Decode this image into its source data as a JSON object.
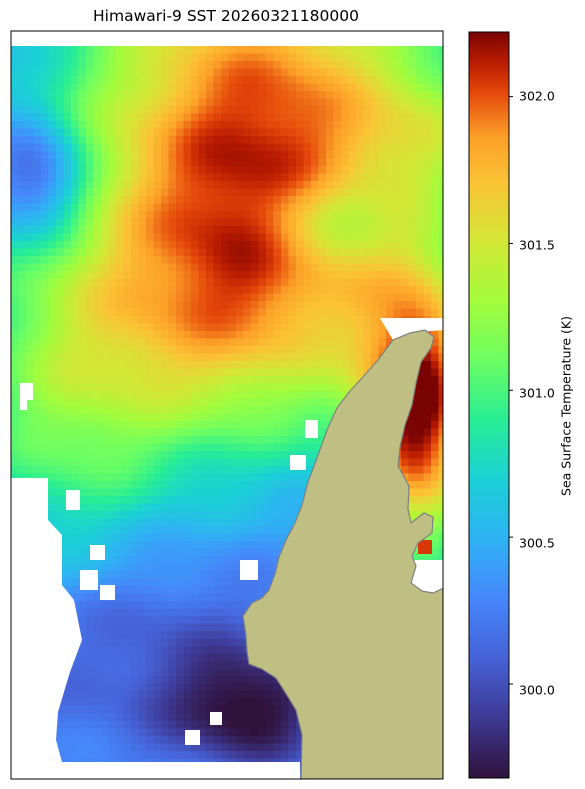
{
  "title": "Himawari-9 SST 20260321180000",
  "colorbar": {
    "label": "Sea Surface Temperature (K)",
    "ticks": [
      "300.0",
      "300.5",
      "301.0",
      "301.5",
      "302.0"
    ],
    "tick_values": [
      300.0,
      300.5,
      301.0,
      301.5,
      302.0
    ],
    "range": [
      299.68,
      302.22
    ],
    "colormap": "turbo"
  },
  "colors": {
    "land": "#bfbf83",
    "coastline": "#808080",
    "no_data": "#ffffff"
  },
  "chart_data": {
    "type": "heatmap",
    "title": "Himawari-9 SST 20260321180000",
    "colorbar_label": "Sea Surface Temperature (K)",
    "value_range": [
      299.68,
      302.22
    ],
    "colorbar_ticks": [
      300.0,
      300.5,
      301.0,
      301.5,
      302.0
    ],
    "values_approx": {
      "north_and_centre": "about 301.8-302.1 K (warmest, dark red)",
      "west_edge_and_middle": "about 301.0-301.4 K (yellow-green to orange)",
      "southwest_offshore": "about 300.2-300.6 K (cyan to light blue)",
      "southern_coastal_pocket": "about 299.8-300.0 K (coldest, deep blue/purple)",
      "east_of_peninsula": "about 302.0 K (dark red)"
    }
  }
}
